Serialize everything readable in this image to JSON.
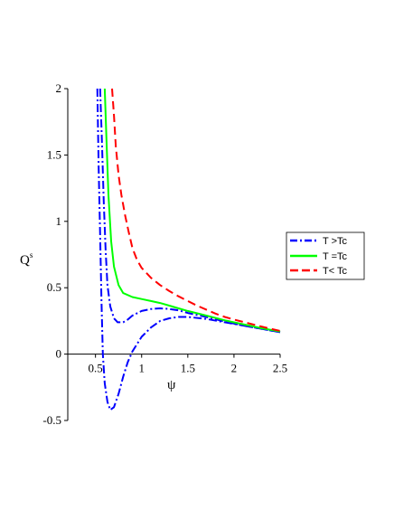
{
  "chart_data": {
    "type": "line",
    "xlabel": "ψ",
    "ylabel": "Q",
    "ylabel_superscript": "s",
    "xlim": [
      0.2,
      2.5
    ],
    "ylim": [
      -0.5,
      2
    ],
    "x_ticks": [
      0.5,
      1,
      1.5,
      2,
      2.5
    ],
    "x_tick_labels": [
      "0.5",
      "1",
      "1.5",
      "2",
      "2.5"
    ],
    "y_ticks": [
      -0.5,
      0,
      0.5,
      1,
      1.5,
      2
    ],
    "y_tick_labels": [
      "-0.5",
      "0",
      "0.5",
      "1",
      "1.5",
      "2"
    ],
    "grid": false,
    "legend_position": "right",
    "series": [
      {
        "name": "T >Tc",
        "color": "#0000ff",
        "dash": "dashdot",
        "segments": [
          [
            [
              0.55,
              2.0
            ],
            [
              0.57,
              1.6
            ],
            [
              0.59,
              1.15
            ],
            [
              0.61,
              0.78
            ],
            [
              0.63,
              0.52
            ],
            [
              0.66,
              0.36
            ],
            [
              0.7,
              0.27
            ],
            [
              0.74,
              0.24
            ],
            [
              0.8,
              0.24
            ],
            [
              0.85,
              0.26
            ],
            [
              0.9,
              0.29
            ],
            [
              1.0,
              0.325
            ],
            [
              1.1,
              0.34
            ],
            [
              1.2,
              0.345
            ],
            [
              1.3,
              0.34
            ],
            [
              1.4,
              0.33
            ],
            [
              1.5,
              0.31
            ],
            [
              1.7,
              0.28
            ],
            [
              1.9,
              0.245
            ],
            [
              2.1,
              0.215
            ],
            [
              2.3,
              0.19
            ],
            [
              2.5,
              0.165
            ]
          ],
          [
            [
              0.52,
              2.0
            ],
            [
              0.535,
              1.4
            ],
            [
              0.55,
              0.9
            ],
            [
              0.565,
              0.4
            ],
            [
              0.58,
              0.0
            ],
            [
              0.6,
              -0.22
            ],
            [
              0.63,
              -0.36
            ],
            [
              0.66,
              -0.42
            ],
            [
              0.7,
              -0.4
            ],
            [
              0.75,
              -0.3
            ],
            [
              0.8,
              -0.17
            ],
            [
              0.85,
              -0.06
            ],
            [
              0.9,
              0.02
            ],
            [
              1.0,
              0.13
            ],
            [
              1.1,
              0.2
            ],
            [
              1.2,
              0.25
            ],
            [
              1.3,
              0.27
            ],
            [
              1.4,
              0.28
            ],
            [
              1.5,
              0.28
            ],
            [
              1.7,
              0.265
            ],
            [
              1.9,
              0.24
            ],
            [
              2.1,
              0.215
            ],
            [
              2.3,
              0.19
            ],
            [
              2.5,
              0.165
            ]
          ]
        ]
      },
      {
        "name": "T =Tc",
        "color": "#00ff00",
        "dash": "solid",
        "segments": [
          [
            [
              0.6,
              2.0
            ],
            [
              0.62,
              1.6
            ],
            [
              0.64,
              1.2
            ],
            [
              0.67,
              0.85
            ],
            [
              0.7,
              0.66
            ],
            [
              0.75,
              0.52
            ],
            [
              0.8,
              0.46
            ],
            [
              0.9,
              0.43
            ],
            [
              1.0,
              0.415
            ],
            [
              1.1,
              0.4
            ],
            [
              1.2,
              0.385
            ],
            [
              1.3,
              0.365
            ],
            [
              1.4,
              0.345
            ],
            [
              1.5,
              0.325
            ],
            [
              1.7,
              0.29
            ],
            [
              1.9,
              0.255
            ],
            [
              2.1,
              0.225
            ],
            [
              2.3,
              0.195
            ],
            [
              2.5,
              0.17
            ]
          ]
        ]
      },
      {
        "name": "T< Tc",
        "color": "#ff0000",
        "dash": "dash",
        "segments": [
          [
            [
              0.68,
              2.0
            ],
            [
              0.7,
              1.8
            ],
            [
              0.72,
              1.57
            ],
            [
              0.75,
              1.35
            ],
            [
              0.78,
              1.2
            ],
            [
              0.82,
              1.05
            ],
            [
              0.86,
              0.92
            ],
            [
              0.9,
              0.8
            ],
            [
              0.95,
              0.71
            ],
            [
              1.0,
              0.65
            ],
            [
              1.1,
              0.575
            ],
            [
              1.2,
              0.52
            ],
            [
              1.3,
              0.475
            ],
            [
              1.4,
              0.435
            ],
            [
              1.5,
              0.4
            ],
            [
              1.6,
              0.365
            ],
            [
              1.7,
              0.335
            ],
            [
              1.8,
              0.305
            ],
            [
              1.9,
              0.28
            ],
            [
              2.0,
              0.26
            ],
            [
              2.2,
              0.225
            ],
            [
              2.4,
              0.19
            ],
            [
              2.5,
              0.175
            ]
          ]
        ]
      }
    ]
  }
}
